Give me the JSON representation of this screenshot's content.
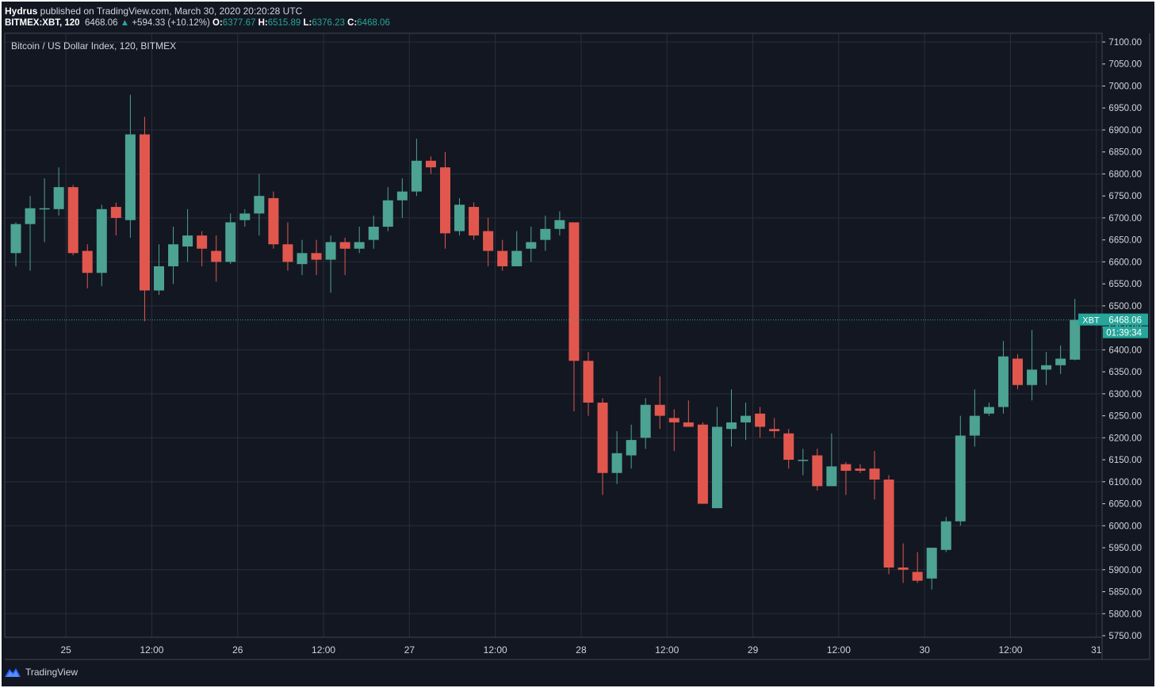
{
  "header": {
    "author": "Hydrus",
    "published_text": " published on TradingView.com, March 30, 2020 20:20:28 UTC",
    "symbol": "BITMEX:XBT, 120",
    "last": "6468.06",
    "change": "+594.33 (+10.12%)",
    "o_label": "O:",
    "o_value": "6377.67",
    "h_label": "H:",
    "h_value": "6515.89",
    "l_label": "L:",
    "l_value": "6376.23",
    "c_label": "C:",
    "c_value": "6468.06"
  },
  "legend": "Bitcoin / US Dollar Index, 120, BITMEX",
  "price_badge": {
    "symbol": "XBT",
    "price": "6468.06",
    "countdown": "01:39:34"
  },
  "footer": {
    "brand": "TradingView"
  },
  "colors": {
    "background": "#131722",
    "up": "#26a69a",
    "down": "#ef5350",
    "grid": "#2a2e39",
    "text": "#d1d4dc",
    "price_line": "#26a69a",
    "up_candle": "#4ca293",
    "down_candle": "#e1574e"
  },
  "chart_data": {
    "type": "candlestick",
    "ylim": [
      5745,
      7115
    ],
    "y_ticks": [
      "5750.00",
      "5800.00",
      "5850.00",
      "5900.00",
      "5950.00",
      "6000.00",
      "6050.00",
      "6100.00",
      "6150.00",
      "6200.00",
      "6250.00",
      "6300.00",
      "6350.00",
      "6400.00",
      "6450.00",
      "6500.00",
      "6550.00",
      "6600.00",
      "6650.00",
      "6700.00",
      "6750.00",
      "6800.00",
      "6850.00",
      "6900.00",
      "6950.00",
      "7000.00",
      "7050.00",
      "7100.00"
    ],
    "x_ticks": [
      "25",
      "12:00",
      "26",
      "12:00",
      "27",
      "12:00",
      "28",
      "12:00",
      "29",
      "12:00",
      "30",
      "12:00",
      "31"
    ],
    "last_price": 6468.06,
    "candles": [
      {
        "o": 6620,
        "h": 6690,
        "l": 6590,
        "c": 6686
      },
      {
        "o": 6686,
        "h": 6750,
        "l": 6580,
        "c": 6722
      },
      {
        "o": 6720,
        "h": 6790,
        "l": 6645,
        "c": 6722
      },
      {
        "o": 6720,
        "h": 6815,
        "l": 6705,
        "c": 6770
      },
      {
        "o": 6770,
        "h": 6775,
        "l": 6615,
        "c": 6620
      },
      {
        "o": 6625,
        "h": 6640,
        "l": 6540,
        "c": 6575
      },
      {
        "o": 6575,
        "h": 6730,
        "l": 6545,
        "c": 6720
      },
      {
        "o": 6725,
        "h": 6735,
        "l": 6660,
        "c": 6700
      },
      {
        "o": 6695,
        "h": 6980,
        "l": 6655,
        "c": 6890
      },
      {
        "o": 6890,
        "h": 6930,
        "l": 6465,
        "c": 6535
      },
      {
        "o": 6535,
        "h": 6640,
        "l": 6525,
        "c": 6590
      },
      {
        "o": 6590,
        "h": 6680,
        "l": 6550,
        "c": 6640
      },
      {
        "o": 6635,
        "h": 6720,
        "l": 6600,
        "c": 6660
      },
      {
        "o": 6660,
        "h": 6670,
        "l": 6590,
        "c": 6630
      },
      {
        "o": 6625,
        "h": 6660,
        "l": 6555,
        "c": 6600
      },
      {
        "o": 6600,
        "h": 6710,
        "l": 6595,
        "c": 6690
      },
      {
        "o": 6695,
        "h": 6720,
        "l": 6680,
        "c": 6710
      },
      {
        "o": 6710,
        "h": 6800,
        "l": 6660,
        "c": 6750
      },
      {
        "o": 6745,
        "h": 6760,
        "l": 6630,
        "c": 6640
      },
      {
        "o": 6640,
        "h": 6690,
        "l": 6580,
        "c": 6600
      },
      {
        "o": 6595,
        "h": 6650,
        "l": 6570,
        "c": 6620
      },
      {
        "o": 6620,
        "h": 6650,
        "l": 6570,
        "c": 6605
      },
      {
        "o": 6605,
        "h": 6660,
        "l": 6530,
        "c": 6645
      },
      {
        "o": 6645,
        "h": 6655,
        "l": 6570,
        "c": 6630
      },
      {
        "o": 6630,
        "h": 6680,
        "l": 6620,
        "c": 6645
      },
      {
        "o": 6650,
        "h": 6705,
        "l": 6630,
        "c": 6680
      },
      {
        "o": 6680,
        "h": 6770,
        "l": 6670,
        "c": 6740
      },
      {
        "o": 6740,
        "h": 6790,
        "l": 6700,
        "c": 6760
      },
      {
        "o": 6760,
        "h": 6880,
        "l": 6750,
        "c": 6830
      },
      {
        "o": 6830,
        "h": 6840,
        "l": 6800,
        "c": 6815
      },
      {
        "o": 6815,
        "h": 6850,
        "l": 6630,
        "c": 6665
      },
      {
        "o": 6670,
        "h": 6745,
        "l": 6660,
        "c": 6730
      },
      {
        "o": 6725,
        "h": 6735,
        "l": 6650,
        "c": 6660
      },
      {
        "o": 6670,
        "h": 6700,
        "l": 6590,
        "c": 6625
      },
      {
        "o": 6625,
        "h": 6650,
        "l": 6580,
        "c": 6590
      },
      {
        "o": 6590,
        "h": 6670,
        "l": 6590,
        "c": 6625
      },
      {
        "o": 6630,
        "h": 6680,
        "l": 6600,
        "c": 6645
      },
      {
        "o": 6650,
        "h": 6705,
        "l": 6625,
        "c": 6675
      },
      {
        "o": 6675,
        "h": 6715,
        "l": 6660,
        "c": 6695
      },
      {
        "o": 6690,
        "h": 6690,
        "l": 6260,
        "c": 6375
      },
      {
        "o": 6375,
        "h": 6395,
        "l": 6250,
        "c": 6280
      },
      {
        "o": 6280,
        "h": 6290,
        "l": 6070,
        "c": 6120
      },
      {
        "o": 6120,
        "h": 6215,
        "l": 6095,
        "c": 6165
      },
      {
        "o": 6160,
        "h": 6230,
        "l": 6130,
        "c": 6195
      },
      {
        "o": 6200,
        "h": 6290,
        "l": 6175,
        "c": 6275
      },
      {
        "o": 6275,
        "h": 6340,
        "l": 6220,
        "c": 6250
      },
      {
        "o": 6245,
        "h": 6265,
        "l": 6170,
        "c": 6235
      },
      {
        "o": 6235,
        "h": 6285,
        "l": 6225,
        "c": 6225
      },
      {
        "o": 6230,
        "h": 6235,
        "l": 6050,
        "c": 6050
      },
      {
        "o": 6040,
        "h": 6270,
        "l": 6040,
        "c": 6225
      },
      {
        "o": 6220,
        "h": 6310,
        "l": 6180,
        "c": 6235
      },
      {
        "o": 6235,
        "h": 6280,
        "l": 6195,
        "c": 6250
      },
      {
        "o": 6255,
        "h": 6270,
        "l": 6200,
        "c": 6225
      },
      {
        "o": 6220,
        "h": 6245,
        "l": 6200,
        "c": 6215
      },
      {
        "o": 6210,
        "h": 6220,
        "l": 6130,
        "c": 6150
      },
      {
        "o": 6150,
        "h": 6175,
        "l": 6115,
        "c": 6150
      },
      {
        "o": 6160,
        "h": 6175,
        "l": 6080,
        "c": 6090
      },
      {
        "o": 6090,
        "h": 6210,
        "l": 6090,
        "c": 6135
      },
      {
        "o": 6140,
        "h": 6145,
        "l": 6070,
        "c": 6125
      },
      {
        "o": 6130,
        "h": 6140,
        "l": 6120,
        "c": 6125
      },
      {
        "o": 6130,
        "h": 6170,
        "l": 6060,
        "c": 6105
      },
      {
        "o": 6105,
        "h": 6115,
        "l": 5890,
        "c": 5905
      },
      {
        "o": 5905,
        "h": 5960,
        "l": 5870,
        "c": 5900
      },
      {
        "o": 5895,
        "h": 5940,
        "l": 5870,
        "c": 5875
      },
      {
        "o": 5880,
        "h": 5945,
        "l": 5855,
        "c": 5950
      },
      {
        "o": 5945,
        "h": 6020,
        "l": 5940,
        "c": 6010
      },
      {
        "o": 6010,
        "h": 6250,
        "l": 6000,
        "c": 6205
      },
      {
        "o": 6205,
        "h": 6310,
        "l": 6180,
        "c": 6250
      },
      {
        "o": 6255,
        "h": 6280,
        "l": 6250,
        "c": 6270
      },
      {
        "o": 6270,
        "h": 6420,
        "l": 6255,
        "c": 6385
      },
      {
        "o": 6380,
        "h": 6390,
        "l": 6310,
        "c": 6320
      },
      {
        "o": 6320,
        "h": 6445,
        "l": 6285,
        "c": 6355
      },
      {
        "o": 6355,
        "h": 6395,
        "l": 6320,
        "c": 6365
      },
      {
        "o": 6365,
        "h": 6410,
        "l": 6345,
        "c": 6380
      },
      {
        "o": 6377.67,
        "h": 6515.89,
        "l": 6376.23,
        "c": 6468.06
      }
    ]
  }
}
